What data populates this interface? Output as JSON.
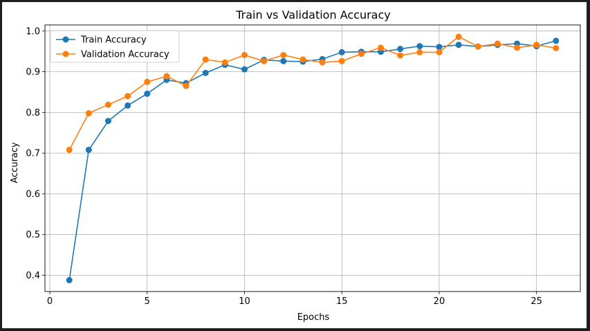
{
  "chart_data": {
    "type": "line",
    "title": "Train vs Validation Accuracy",
    "xlabel": "Epochs",
    "ylabel": "Accuracy",
    "xlim": [
      -0.25,
      27.25
    ],
    "ylim": [
      0.36,
      1.015
    ],
    "xticks": [
      0,
      5,
      10,
      15,
      20,
      25
    ],
    "yticks": [
      0.4,
      0.5,
      0.6,
      0.7,
      0.8,
      0.9,
      1.0
    ],
    "grid": true,
    "legend_position": "upper-left",
    "x": [
      1,
      2,
      3,
      4,
      5,
      6,
      7,
      8,
      9,
      10,
      11,
      12,
      13,
      14,
      15,
      16,
      17,
      18,
      19,
      20,
      21,
      22,
      23,
      24,
      25,
      26
    ],
    "series": [
      {
        "name": "Train Accuracy",
        "color": "#1f77b4",
        "values": [
          0.388,
          0.708,
          0.779,
          0.817,
          0.846,
          0.88,
          0.872,
          0.897,
          0.917,
          0.906,
          0.929,
          0.926,
          0.925,
          0.931,
          0.948,
          0.949,
          0.949,
          0.956,
          0.963,
          0.961,
          0.966,
          0.962,
          0.966,
          0.969,
          0.963,
          0.976
        ]
      },
      {
        "name": "Validation Accuracy",
        "color": "#ff7f0e",
        "values": [
          0.708,
          0.798,
          0.819,
          0.84,
          0.875,
          0.889,
          0.865,
          0.93,
          0.923,
          0.941,
          0.926,
          0.941,
          0.93,
          0.923,
          0.926,
          0.944,
          0.959,
          0.94,
          0.948,
          0.948,
          0.986,
          0.962,
          0.969,
          0.959,
          0.966,
          0.958
        ]
      }
    ]
  }
}
